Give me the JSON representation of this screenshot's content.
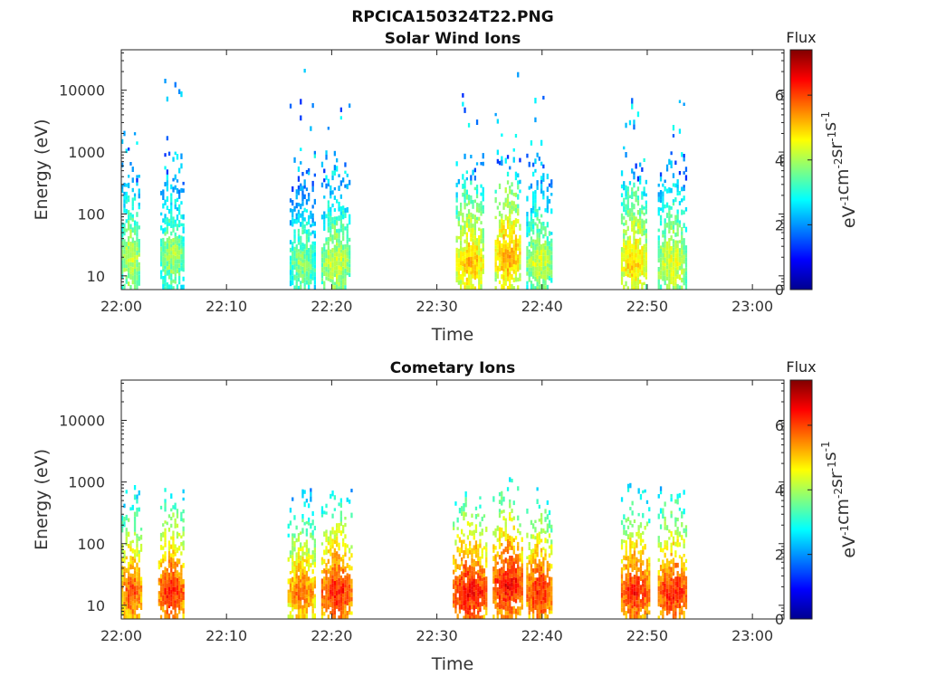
{
  "figure": {
    "title": "RPCICA150324T22.PNG"
  },
  "chart_data": [
    {
      "type": "heatmap",
      "title": "Solar Wind Ions",
      "xlabel": "Time",
      "ylabel": "Energy (eV)",
      "x_ticks": [
        "22:00",
        "22:10",
        "22:20",
        "22:30",
        "22:40",
        "22:50",
        "23:00"
      ],
      "x_range_minutes": [
        0,
        63
      ],
      "y_scale": "log",
      "y_ticks": [
        "10",
        "100",
        "1000",
        "10000"
      ],
      "y_range": [
        6,
        45000
      ],
      "colorbar": {
        "title": "Flux",
        "label": "eV-1cm-2sr-1s-1",
        "ticks": [
          "0",
          "2",
          "4",
          "6"
        ],
        "range": [
          0,
          7.4
        ],
        "colormap": "jet"
      },
      "bursts": [
        {
          "start_min": 0.0,
          "end_min": 1.8,
          "peak_energy_ev": 18,
          "peak_flux": 4.8,
          "max_energy_ev": 5000
        },
        {
          "start_min": 3.7,
          "end_min": 6.0,
          "peak_energy_ev": 20,
          "peak_flux": 4.5,
          "max_energy_ev": 16000
        },
        {
          "start_min": 16.0,
          "end_min": 18.5,
          "peak_energy_ev": 15,
          "peak_flux": 4.3,
          "max_energy_ev": 28000
        },
        {
          "start_min": 19.0,
          "end_min": 21.8,
          "peak_energy_ev": 15,
          "peak_flux": 4.8,
          "max_energy_ev": 10000
        },
        {
          "start_min": 31.8,
          "end_min": 34.5,
          "peak_energy_ev": 15,
          "peak_flux": 5.6,
          "max_energy_ev": 9000
        },
        {
          "start_min": 35.5,
          "end_min": 38.0,
          "peak_energy_ev": 20,
          "peak_flux": 5.8,
          "max_energy_ev": 22000
        },
        {
          "start_min": 38.5,
          "end_min": 41.0,
          "peak_energy_ev": 15,
          "peak_flux": 4.8,
          "max_energy_ev": 8000
        },
        {
          "start_min": 47.5,
          "end_min": 50.0,
          "peak_energy_ev": 15,
          "peak_flux": 5.5,
          "max_energy_ev": 7000
        },
        {
          "start_min": 51.0,
          "end_min": 53.8,
          "peak_energy_ev": 15,
          "peak_flux": 5.0,
          "max_energy_ev": 8000
        }
      ]
    },
    {
      "type": "heatmap",
      "title": "Cometary Ions",
      "xlabel": "Time",
      "ylabel": "Energy (eV)",
      "x_ticks": [
        "22:00",
        "22:10",
        "22:20",
        "22:30",
        "22:40",
        "22:50",
        "23:00"
      ],
      "x_range_minutes": [
        0,
        63
      ],
      "y_scale": "log",
      "y_ticks": [
        "10",
        "100",
        "1000",
        "10000"
      ],
      "y_range": [
        6,
        45000
      ],
      "colorbar": {
        "title": "Flux",
        "label": "eV-1cm-2sr-1s-1",
        "ticks": [
          "0",
          "2",
          "4",
          "6"
        ],
        "range": [
          0,
          7.4
        ],
        "colormap": "jet"
      },
      "bursts": [
        {
          "start_min": 0.0,
          "end_min": 2.0,
          "peak_energy_ev": 15,
          "peak_flux": 6.5,
          "max_energy_ev": 4000
        },
        {
          "start_min": 3.5,
          "end_min": 6.0,
          "peak_energy_ev": 15,
          "peak_flux": 6.8,
          "max_energy_ev": 2000
        },
        {
          "start_min": 15.8,
          "end_min": 18.5,
          "peak_energy_ev": 15,
          "peak_flux": 6.2,
          "max_energy_ev": 4000
        },
        {
          "start_min": 19.0,
          "end_min": 22.0,
          "peak_energy_ev": 15,
          "peak_flux": 6.8,
          "max_energy_ev": 2500
        },
        {
          "start_min": 31.5,
          "end_min": 34.8,
          "peak_energy_ev": 15,
          "peak_flux": 7.0,
          "max_energy_ev": 600
        },
        {
          "start_min": 35.3,
          "end_min": 38.2,
          "peak_energy_ev": 20,
          "peak_flux": 7.0,
          "max_energy_ev": 1000
        },
        {
          "start_min": 38.5,
          "end_min": 41.0,
          "peak_energy_ev": 15,
          "peak_flux": 6.8,
          "max_energy_ev": 2000
        },
        {
          "start_min": 47.5,
          "end_min": 50.3,
          "peak_energy_ev": 15,
          "peak_flux": 6.8,
          "max_energy_ev": 4000
        },
        {
          "start_min": 51.0,
          "end_min": 53.8,
          "peak_energy_ev": 15,
          "peak_flux": 6.8,
          "max_energy_ev": 4000
        }
      ]
    }
  ]
}
